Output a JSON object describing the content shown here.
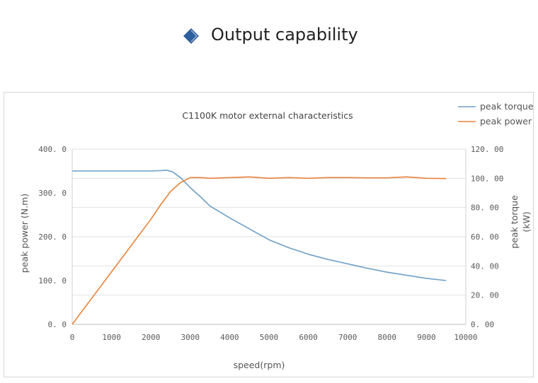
{
  "header": {
    "title": "Output capability",
    "icon": "diamond-icon",
    "icon_color": "#2d5f9e"
  },
  "chart_data": {
    "type": "line",
    "title": "C1100K motor  external characteristics",
    "xlabel": "speed(rpm)",
    "ylabel_left": "peak power (N.m)",
    "ylabel_right_line1": "peak torque",
    "ylabel_right_line2": "(kW)",
    "xlim": [
      0,
      10000
    ],
    "ylim_left": [
      0,
      400
    ],
    "ylim_right": [
      0,
      120
    ],
    "x_ticks": [
      "0",
      "1000",
      "2000",
      "3000",
      "4000",
      "5000",
      "6000",
      "7000",
      "8000",
      "9000",
      "10000"
    ],
    "y_left_ticks": [
      "0. 0",
      "100. 0",
      "200. 0",
      "300. 0",
      "400. 0"
    ],
    "y_right_ticks": [
      "0. 00",
      "20. 00",
      "40. 00",
      "60. 00",
      "80. 00",
      "100. 00",
      "120. 00"
    ],
    "grid": "horizontal",
    "legend_position": "top-right",
    "series": [
      {
        "name": "peak torque",
        "axis": "left",
        "color": "#6f9fc6",
        "x": [
          0,
          1000,
          2000,
          2250,
          2400,
          2550,
          2750,
          3000,
          3250,
          3500,
          4000,
          4500,
          5000,
          5500,
          6000,
          6500,
          7000,
          7500,
          8000,
          8500,
          9000,
          9500
        ],
        "y": [
          350,
          350,
          350,
          351,
          352,
          348,
          335,
          312,
          292,
          270,
          243,
          218,
          193,
          175,
          160,
          148,
          138,
          128,
          119,
          112,
          105,
          100
        ]
      },
      {
        "name": "peak power",
        "axis": "right",
        "color": "#e8823a",
        "x": [
          0,
          500,
          1000,
          1500,
          2000,
          2250,
          2500,
          2750,
          3000,
          3250,
          3500,
          4000,
          4500,
          5000,
          5500,
          6000,
          6500,
          7000,
          7500,
          8000,
          8500,
          9000,
          9500
        ],
        "y": [
          0,
          18,
          36,
          54,
          72,
          82,
          91,
          97,
          100.5,
          100.5,
          100,
          100.5,
          101,
          100,
          100.5,
          100,
          100.5,
          100.5,
          100.3,
          100.3,
          101,
          100,
          99.8
        ]
      }
    ]
  }
}
